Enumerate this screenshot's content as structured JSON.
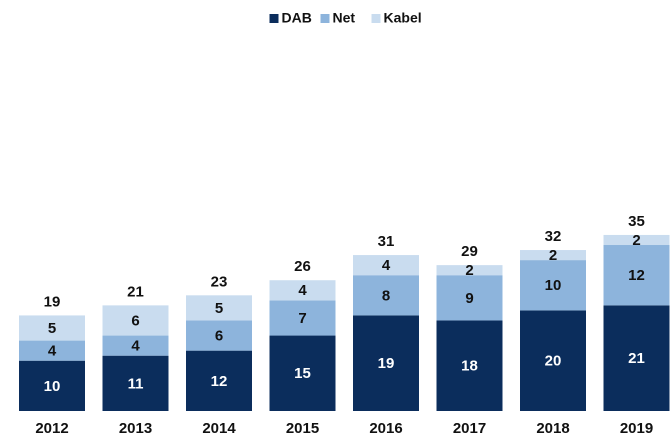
{
  "chart_data": {
    "type": "stacked_bar",
    "categories": [
      "2012",
      "2013",
      "2014",
      "2015",
      "2016",
      "2017",
      "2018",
      "2019"
    ],
    "series": [
      {
        "name": "DAB",
        "color": "#0b2d5c",
        "values": [
          10,
          11,
          12,
          15,
          19,
          18,
          20,
          21
        ]
      },
      {
        "name": "Net",
        "color": "#8db4dc",
        "values": [
          4,
          4,
          6,
          7,
          8,
          9,
          10,
          12
        ]
      },
      {
        "name": "Kabel",
        "color": "#c9dcef",
        "values": [
          5,
          6,
          5,
          4,
          4,
          2,
          2,
          2
        ]
      }
    ],
    "totals": [
      19,
      21,
      23,
      26,
      31,
      29,
      32,
      35
    ],
    "legend": "top"
  }
}
